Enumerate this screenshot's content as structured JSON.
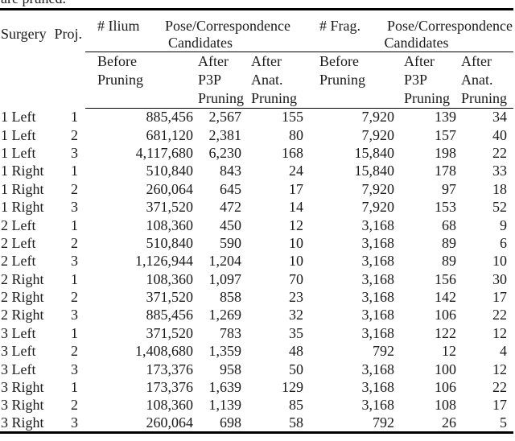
{
  "caption_fragment": "are pruned.",
  "colors": {
    "text": "#1a1a1a",
    "rule": "#000000",
    "background": "#ffffff"
  },
  "table": {
    "corner_headers": {
      "surgery": "Surgery",
      "proj": "Proj."
    },
    "group_headers": [
      {
        "line1_left": "# Ilium",
        "line1_right": "Pose/Correspondence",
        "line2": "Candidates"
      },
      {
        "line1_left": "# Frag.",
        "line1_right": "Pose/Correspondence",
        "line2": "Candidates"
      }
    ],
    "subheaders": [
      [
        "Before",
        "Pruning"
      ],
      [
        "After",
        "P3P",
        "Pruning"
      ],
      [
        "After",
        "Anat.",
        "Pruning"
      ],
      [
        "Before",
        "Pruning"
      ],
      [
        "After",
        "P3P",
        "Pruning"
      ],
      [
        "After",
        "Anat.",
        "Pruning"
      ]
    ],
    "rows": [
      [
        "1 Left",
        "1",
        "885,456",
        "2,567",
        "155",
        "7,920",
        "139",
        "34"
      ],
      [
        "1 Left",
        "2",
        "681,120",
        "2,381",
        "80",
        "7,920",
        "157",
        "40"
      ],
      [
        "1 Left",
        "3",
        "4,117,680",
        "6,230",
        "168",
        "15,840",
        "198",
        "22"
      ],
      [
        "1 Right",
        "1",
        "510,840",
        "843",
        "24",
        "15,840",
        "178",
        "33"
      ],
      [
        "1 Right",
        "2",
        "260,064",
        "645",
        "17",
        "7,920",
        "97",
        "18"
      ],
      [
        "1 Right",
        "3",
        "371,520",
        "472",
        "14",
        "7,920",
        "153",
        "52"
      ],
      [
        "2 Left",
        "1",
        "108,360",
        "450",
        "12",
        "3,168",
        "68",
        "9"
      ],
      [
        "2 Left",
        "2",
        "510,840",
        "590",
        "10",
        "3,168",
        "89",
        "6"
      ],
      [
        "2 Left",
        "3",
        "1,126,944",
        "1,204",
        "10",
        "3,168",
        "89",
        "10"
      ],
      [
        "2 Right",
        "1",
        "108,360",
        "1,097",
        "70",
        "3,168",
        "156",
        "30"
      ],
      [
        "2 Right",
        "2",
        "371,520",
        "858",
        "23",
        "3,168",
        "142",
        "17"
      ],
      [
        "2 Right",
        "3",
        "885,456",
        "1,269",
        "32",
        "3,168",
        "106",
        "22"
      ],
      [
        "3 Left",
        "1",
        "371,520",
        "783",
        "35",
        "3,168",
        "122",
        "12"
      ],
      [
        "3 Left",
        "2",
        "1,408,680",
        "1,359",
        "48",
        "792",
        "12",
        "4"
      ],
      [
        "3 Left",
        "3",
        "173,376",
        "958",
        "50",
        "3,168",
        "100",
        "12"
      ],
      [
        "3 Right",
        "1",
        "173,376",
        "1,639",
        "129",
        "3,168",
        "106",
        "22"
      ],
      [
        "3 Right",
        "2",
        "108,360",
        "1,139",
        "85",
        "3,168",
        "108",
        "17"
      ],
      [
        "3 Right",
        "3",
        "260,064",
        "698",
        "58",
        "792",
        "26",
        "5"
      ]
    ]
  }
}
